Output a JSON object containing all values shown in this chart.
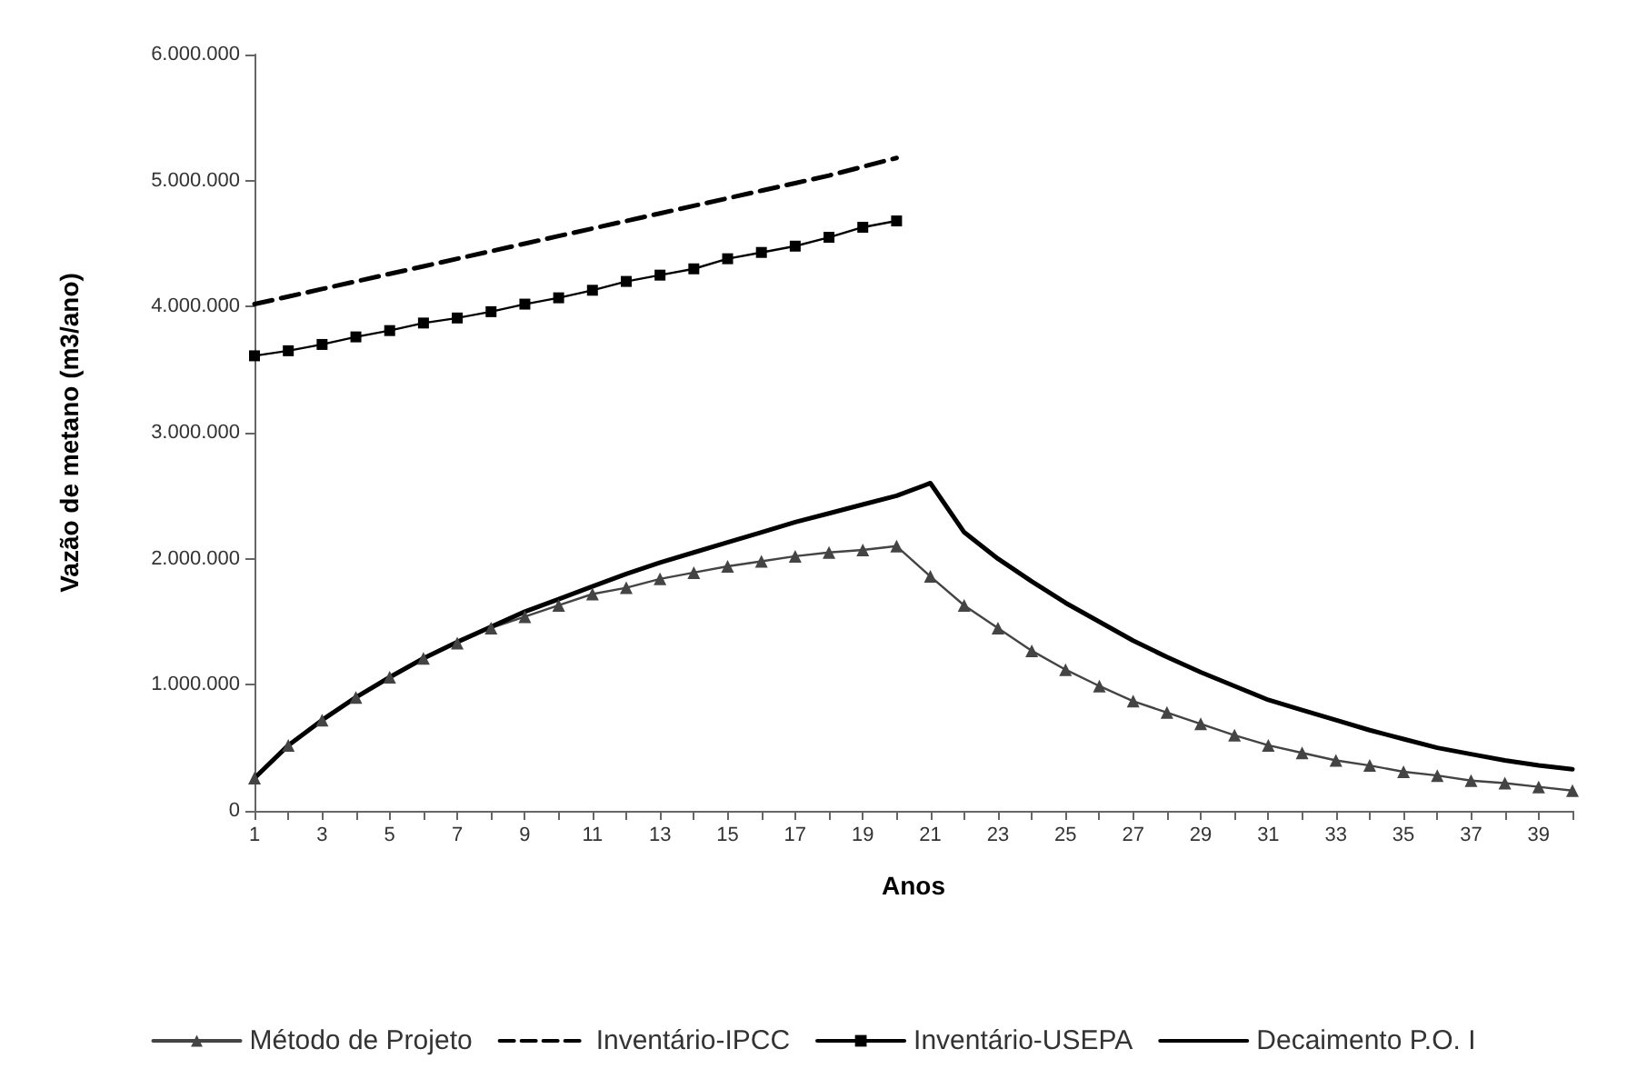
{
  "chart_data": {
    "type": "line",
    "xlabel": "Anos",
    "ylabel": "Vazão de metano (m3/ano)",
    "x": [
      1,
      2,
      3,
      4,
      5,
      6,
      7,
      8,
      9,
      10,
      11,
      12,
      13,
      14,
      15,
      16,
      17,
      18,
      19,
      20,
      21,
      22,
      23,
      24,
      25,
      26,
      27,
      28,
      29,
      30,
      31,
      32,
      33,
      34,
      35,
      36,
      37,
      38,
      39,
      40
    ],
    "xlim": [
      1,
      40
    ],
    "xticks": [
      1,
      {
        "value": 2,
        "label": null
      },
      3,
      {
        "value": 4,
        "label": null
      },
      5,
      {
        "value": 6,
        "label": null
      },
      7,
      {
        "value": 8,
        "label": null
      },
      9,
      {
        "value": 10,
        "label": null
      },
      11,
      {
        "value": 12,
        "label": null
      },
      13,
      {
        "value": 14,
        "label": null
      },
      15,
      {
        "value": 16,
        "label": null
      },
      17,
      {
        "value": 18,
        "label": null
      },
      19,
      {
        "value": 20,
        "label": null
      },
      21,
      {
        "value": 22,
        "label": null
      },
      23,
      {
        "value": 24,
        "label": null
      },
      25,
      {
        "value": 26,
        "label": null
      },
      27,
      {
        "value": 28,
        "label": null
      },
      29,
      {
        "value": 30,
        "label": null
      },
      31,
      {
        "value": 32,
        "label": null
      },
      33,
      {
        "value": 34,
        "label": null
      },
      35,
      {
        "value": 36,
        "label": null
      },
      37,
      {
        "value": 38,
        "label": null
      },
      39,
      {
        "value": 40,
        "label": null
      }
    ],
    "series": [
      {
        "name": "Método de Projeto",
        "color": "#444444",
        "marker": "triangle",
        "line_style": "solid",
        "values": [
          260000,
          520000,
          720000,
          900000,
          1060000,
          1210000,
          1330000,
          1450000,
          1540000,
          1630000,
          1720000,
          1770000,
          1840000,
          1890000,
          1940000,
          1980000,
          2020000,
          2050000,
          2070000,
          2100000,
          1860000,
          1630000,
          1450000,
          1270000,
          1120000,
          990000,
          870000,
          780000,
          690000,
          600000,
          520000,
          460000,
          400000,
          360000,
          310000,
          280000,
          240000,
          220000,
          190000,
          160000
        ]
      },
      {
        "name": "Inventário-IPCC",
        "color": "#000000",
        "marker": "none",
        "line_style": "dashed",
        "values": [
          4020000,
          4080000,
          4140000,
          4200000,
          4260000,
          4320000,
          4380000,
          4440000,
          4500000,
          4560000,
          4620000,
          4680000,
          4740000,
          4800000,
          4860000,
          4920000,
          4980000,
          5040000,
          5110000,
          5180000,
          null,
          null,
          null,
          null,
          null,
          null,
          null,
          null,
          null,
          null,
          null,
          null,
          null,
          null,
          null,
          null,
          null,
          null,
          null,
          null
        ]
      },
      {
        "name": "Inventário-USEPA",
        "color": "#000000",
        "marker": "square",
        "line_style": "solid",
        "values": [
          3610000,
          3650000,
          3700000,
          3760000,
          3810000,
          3870000,
          3910000,
          3960000,
          4020000,
          4070000,
          4130000,
          4200000,
          4250000,
          4300000,
          4380000,
          4430000,
          4480000,
          4550000,
          4630000,
          4680000,
          null,
          null,
          null,
          null,
          null,
          null,
          null,
          null,
          null,
          null,
          null,
          null,
          null,
          null,
          null,
          null,
          null,
          null,
          null,
          null
        ]
      },
      {
        "name": "Decaimento P.O. I",
        "color": "#000000",
        "marker": "none",
        "line_style": "solid",
        "values": [
          260000,
          520000,
          720000,
          900000,
          1060000,
          1210000,
          1340000,
          1460000,
          1580000,
          1680000,
          1780000,
          1880000,
          1970000,
          2050000,
          2130000,
          2210000,
          2290000,
          2360000,
          2430000,
          2500000,
          2600000,
          2210000,
          2000000,
          1820000,
          1650000,
          1500000,
          1350000,
          1220000,
          1100000,
          990000,
          880000,
          800000,
          720000,
          640000,
          570000,
          500000,
          450000,
          400000,
          360000,
          330000
        ]
      }
    ],
    "ylim": [
      0,
      6000000
    ],
    "yticks": [
      0,
      {
        "value": 1000000,
        "label": "1.000.000"
      },
      {
        "value": 2000000,
        "label": "2.000.000"
      },
      {
        "value": 3000000,
        "label": "3.000.000"
      },
      {
        "value": 4000000,
        "label": "4.000.000"
      },
      {
        "value": 5000000,
        "label": "5.000.000"
      },
      {
        "value": 6000000,
        "label": "6.000.000"
      }
    ],
    "grid": false,
    "legend": "bottom"
  }
}
